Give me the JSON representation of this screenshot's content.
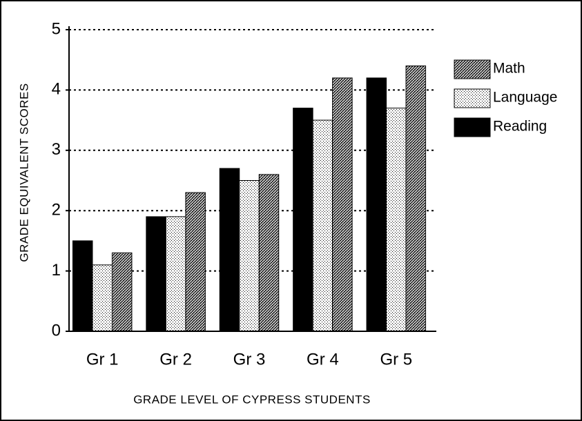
{
  "chart_data": {
    "type": "bar",
    "ylabel": "GRADE EQUIVALENT SCORES",
    "xlabel": "GRADE LEVEL OF CYPRESS STUDENTS",
    "categories": [
      "Gr 1",
      "Gr 2",
      "Gr 3",
      "Gr 4",
      "Gr 5"
    ],
    "series": [
      {
        "name": "Reading",
        "color": "#000000",
        "values": [
          1.5,
          1.9,
          2.7,
          3.7,
          4.2
        ]
      },
      {
        "name": "Language",
        "color": "#ffffff",
        "values": [
          1.1,
          1.9,
          2.5,
          3.5,
          3.7
        ]
      },
      {
        "name": "Math",
        "color": "#b0b0b0",
        "values": [
          1.3,
          2.3,
          2.6,
          4.2,
          4.4
        ]
      }
    ],
    "ylim": [
      0,
      5
    ],
    "yticks": [
      0,
      1,
      2,
      3,
      4,
      5
    ],
    "grid": true
  }
}
